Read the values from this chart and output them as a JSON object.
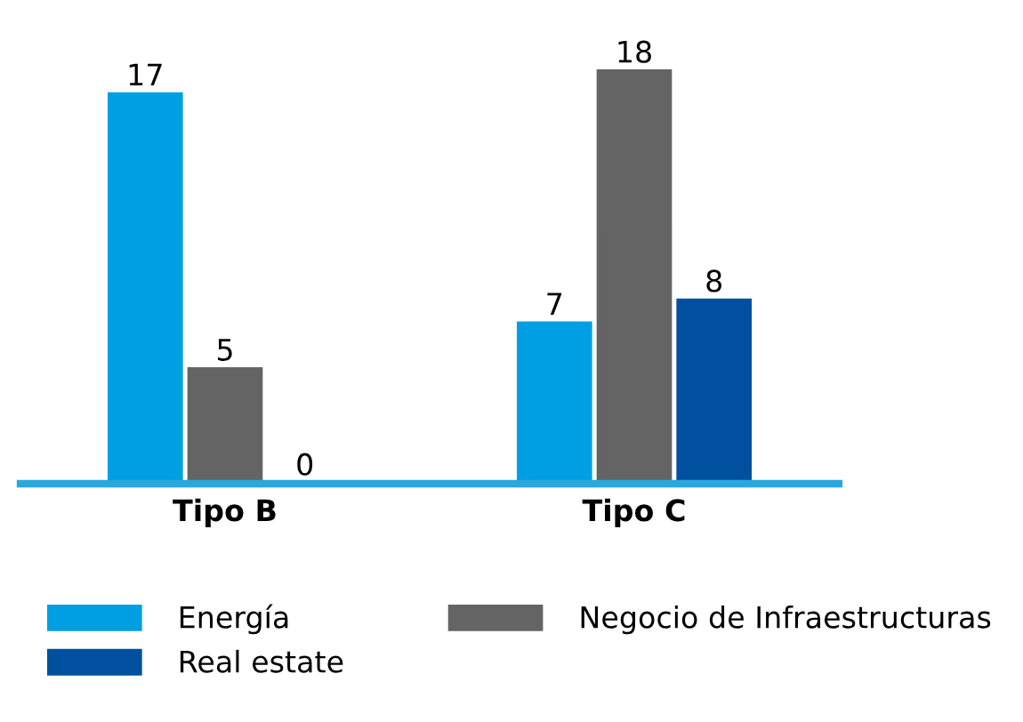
{
  "chart_data": {
    "type": "bar",
    "categories": [
      "Tipo B",
      "Tipo C"
    ],
    "series": [
      {
        "name": "Energía",
        "color": "#009fe3",
        "values": [
          17,
          7
        ]
      },
      {
        "name": "Negocio de Infraestructuras",
        "color": "#646464",
        "values": [
          5,
          18
        ]
      },
      {
        "name": "Real estate",
        "color": "#0050a0",
        "values": [
          0,
          8
        ]
      }
    ],
    "data_labels": true,
    "legend": "bottom",
    "grid": false,
    "tick_labels": "x"
  }
}
